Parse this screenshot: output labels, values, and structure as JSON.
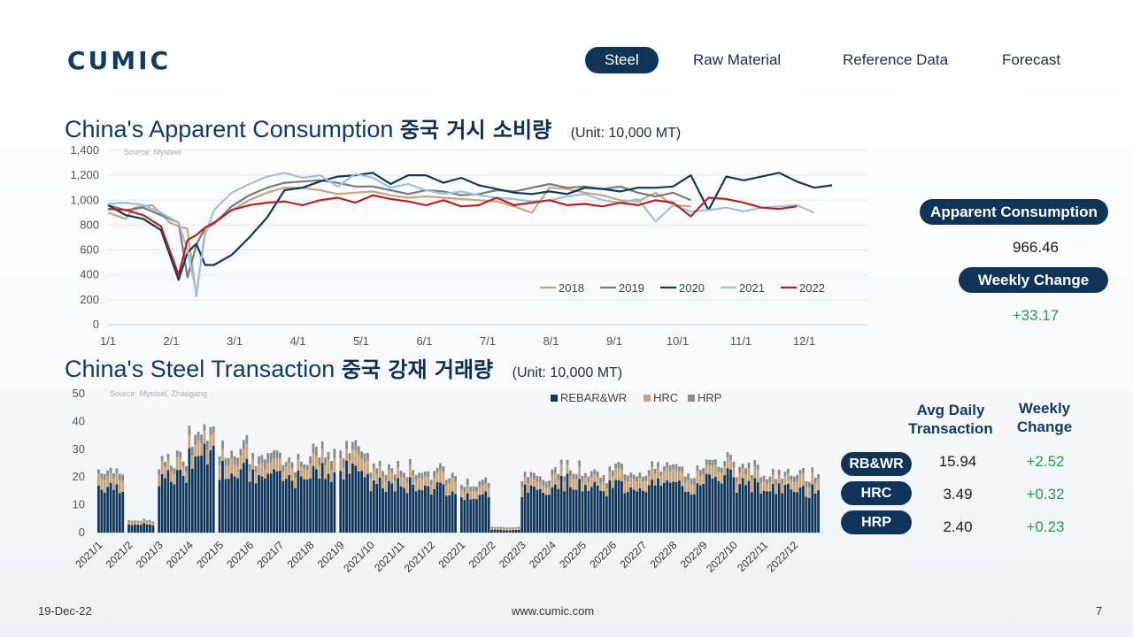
{
  "logo": {
    "text": "CUMIC"
  },
  "nav": {
    "items": [
      "Steel",
      "Raw Material",
      "Reference Data",
      "Forecast"
    ],
    "active": "Steel"
  },
  "consumption": {
    "title_en": "China's Apparent Consumption",
    "title_kr": "중국 거시 소비량",
    "unit": "(Unit: 10,000 MT)",
    "source": "Source: Mysteel",
    "summary_label": "Apparent Consumption",
    "summary_value": "966.46",
    "change_label": "Weekly Change",
    "change_value": "+33.17"
  },
  "transaction": {
    "title_en": "China's Steel Transaction",
    "title_kr": "중국 강재 거래량",
    "unit": "(Unit: 10,000 MT)",
    "source": "Source: Mysteel, Zhaogang",
    "col_avg": "Avg Daily Transaction",
    "col_change": "Weekly Change",
    "rows": [
      {
        "label": "RB&WR",
        "avg": "15.94",
        "change": "+2.52"
      },
      {
        "label": "HRC",
        "avg": "3.49",
        "change": "+0.32"
      },
      {
        "label": "HRP",
        "avg": "2.40",
        "change": "+0.23"
      }
    ]
  },
  "footer": {
    "date": "19-Dec-22",
    "website": "www.cumic.com",
    "page": "7"
  },
  "chart_data": [
    {
      "type": "line",
      "title": "",
      "ylim": [
        0,
        1400
      ],
      "y_ticks": [
        "0",
        "200",
        "400",
        "600",
        "800",
        "1,000",
        "1,200",
        "1,400"
      ],
      "x_ticks": [
        "1/1",
        "2/1",
        "3/1",
        "4/1",
        "5/1",
        "6/1",
        "7/1",
        "8/1",
        "9/1",
        "10/1",
        "11/1",
        "12/1"
      ],
      "grid": true,
      "legend": "bottom-right",
      "x_unit": "week of year (0-51)",
      "series": [
        {
          "name": "2018",
          "color": "#c9a47a",
          "points": [
            [
              0,
              900
            ],
            [
              2,
              850
            ],
            [
              3,
              940
            ],
            [
              5,
              960
            ],
            [
              7,
              820
            ],
            [
              8,
              790
            ],
            [
              9,
              770
            ],
            [
              10,
              230
            ],
            [
              11,
              760
            ],
            [
              12,
              810
            ],
            [
              14,
              920
            ],
            [
              16,
              1000
            ],
            [
              18,
              1060
            ],
            [
              20,
              1100
            ],
            [
              22,
              1100
            ],
            [
              24,
              1080
            ],
            [
              26,
              1050
            ],
            [
              28,
              1060
            ],
            [
              30,
              1070
            ],
            [
              32,
              1040
            ],
            [
              34,
              1020
            ],
            [
              36,
              1030
            ],
            [
              38,
              1020
            ],
            [
              40,
              1010
            ],
            [
              42,
              1000
            ],
            [
              44,
              990
            ],
            [
              46,
              950
            ],
            [
              48,
              900
            ],
            [
              50,
              1100
            ],
            [
              52,
              1090
            ],
            [
              54,
              1060
            ],
            [
              56,
              1040
            ],
            [
              58,
              1000
            ],
            [
              60,
              990
            ],
            [
              62,
              1060
            ],
            [
              64,
              960
            ],
            [
              66,
              950
            ]
          ]
        },
        {
          "name": "2019",
          "color": "#7a7a7a",
          "points": [
            [
              0,
              960
            ],
            [
              2,
              920
            ],
            [
              4,
              940
            ],
            [
              6,
              880
            ],
            [
              8,
              820
            ],
            [
              9,
              380
            ],
            [
              10,
              640
            ],
            [
              11,
              780
            ],
            [
              12,
              810
            ],
            [
              14,
              950
            ],
            [
              16,
              1040
            ],
            [
              18,
              1100
            ],
            [
              20,
              1140
            ],
            [
              22,
              1150
            ],
            [
              24,
              1160
            ],
            [
              26,
              1140
            ],
            [
              28,
              1110
            ],
            [
              30,
              1110
            ],
            [
              32,
              1080
            ],
            [
              34,
              1050
            ],
            [
              36,
              1080
            ],
            [
              38,
              1070
            ],
            [
              40,
              1040
            ],
            [
              42,
              1050
            ],
            [
              44,
              1080
            ],
            [
              46,
              1070
            ],
            [
              48,
              1100
            ],
            [
              50,
              1130
            ],
            [
              52,
              1100
            ],
            [
              54,
              1110
            ],
            [
              56,
              1090
            ],
            [
              58,
              1110
            ],
            [
              60,
              1060
            ],
            [
              62,
              1030
            ],
            [
              64,
              1060
            ],
            [
              66,
              1000
            ]
          ]
        },
        {
          "name": "2020",
          "color": "#12375d",
          "points": [
            [
              0,
              960
            ],
            [
              2,
              880
            ],
            [
              4,
              850
            ],
            [
              6,
              760
            ],
            [
              8,
              360
            ],
            [
              9,
              580
            ],
            [
              10,
              650
            ],
            [
              11,
              480
            ],
            [
              12,
              480
            ],
            [
              14,
              560
            ],
            [
              16,
              700
            ],
            [
              18,
              860
            ],
            [
              20,
              1080
            ],
            [
              22,
              1100
            ],
            [
              24,
              1150
            ],
            [
              26,
              1190
            ],
            [
              28,
              1200
            ],
            [
              30,
              1220
            ],
            [
              32,
              1130
            ],
            [
              34,
              1200
            ],
            [
              36,
              1200
            ],
            [
              38,
              1140
            ],
            [
              40,
              1180
            ],
            [
              42,
              1120
            ],
            [
              44,
              1090
            ],
            [
              46,
              1060
            ],
            [
              48,
              1050
            ],
            [
              50,
              1070
            ],
            [
              52,
              1050
            ],
            [
              54,
              1100
            ],
            [
              56,
              1090
            ],
            [
              58,
              1070
            ],
            [
              60,
              1100
            ],
            [
              62,
              1100
            ],
            [
              64,
              1110
            ],
            [
              66,
              1200
            ],
            [
              68,
              920
            ],
            [
              70,
              1190
            ],
            [
              72,
              1160
            ],
            [
              74,
              1190
            ],
            [
              76,
              1220
            ],
            [
              78,
              1150
            ],
            [
              80,
              1100
            ],
            [
              82,
              1120
            ]
          ]
        },
        {
          "name": "2021",
          "color": "#9fc1df",
          "points": [
            [
              0,
              970
            ],
            [
              2,
              980
            ],
            [
              4,
              960
            ],
            [
              6,
              900
            ],
            [
              8,
              820
            ],
            [
              9,
              600
            ],
            [
              10,
              250
            ],
            [
              11,
              720
            ],
            [
              12,
              920
            ],
            [
              14,
              1060
            ],
            [
              16,
              1130
            ],
            [
              18,
              1190
            ],
            [
              20,
              1220
            ],
            [
              22,
              1180
            ],
            [
              24,
              1200
            ],
            [
              26,
              1110
            ],
            [
              28,
              1210
            ],
            [
              30,
              1180
            ],
            [
              32,
              1100
            ],
            [
              34,
              1130
            ],
            [
              36,
              1080
            ],
            [
              38,
              1050
            ],
            [
              40,
              1070
            ],
            [
              42,
              1040
            ],
            [
              44,
              1020
            ],
            [
              46,
              1010
            ],
            [
              48,
              990
            ],
            [
              50,
              1000
            ],
            [
              52,
              1030
            ],
            [
              54,
              1050
            ],
            [
              56,
              1000
            ],
            [
              58,
              980
            ],
            [
              60,
              1010
            ],
            [
              62,
              830
            ],
            [
              64,
              960
            ],
            [
              66,
              910
            ],
            [
              68,
              920
            ],
            [
              70,
              940
            ],
            [
              72,
              910
            ],
            [
              74,
              940
            ],
            [
              76,
              950
            ],
            [
              78,
              960
            ],
            [
              80,
              900
            ]
          ]
        },
        {
          "name": "2022",
          "color": "#b52424",
          "points": [
            [
              0,
              930
            ],
            [
              2,
              920
            ],
            [
              4,
              880
            ],
            [
              6,
              790
            ],
            [
              8,
              400
            ],
            [
              9,
              680
            ],
            [
              10,
              720
            ],
            [
              11,
              780
            ],
            [
              12,
              820
            ],
            [
              14,
              920
            ],
            [
              16,
              960
            ],
            [
              18,
              980
            ],
            [
              20,
              990
            ],
            [
              22,
              960
            ],
            [
              24,
              1000
            ],
            [
              26,
              1020
            ],
            [
              28,
              980
            ],
            [
              30,
              1040
            ],
            [
              32,
              1010
            ],
            [
              34,
              990
            ],
            [
              36,
              960
            ],
            [
              38,
              1000
            ],
            [
              40,
              950
            ],
            [
              42,
              960
            ],
            [
              44,
              1020
            ],
            [
              46,
              960
            ],
            [
              48,
              980
            ],
            [
              50,
              1000
            ],
            [
              52,
              960
            ],
            [
              54,
              970
            ],
            [
              56,
              950
            ],
            [
              58,
              980
            ],
            [
              60,
              960
            ],
            [
              62,
              1000
            ],
            [
              64,
              980
            ],
            [
              66,
              870
            ],
            [
              68,
              1020
            ],
            [
              70,
              1010
            ],
            [
              72,
              980
            ],
            [
              74,
              940
            ],
            [
              76,
              930
            ],
            [
              78,
              950
            ]
          ]
        }
      ]
    },
    {
      "type": "bar",
      "stacked": true,
      "title": "",
      "ylim": [
        0,
        50
      ],
      "y_ticks": [
        "0",
        "10",
        "20",
        "30",
        "40",
        "50"
      ],
      "x_ticks": [
        "2021/1",
        "2021/2",
        "2021/3",
        "2021/4",
        "2021/5",
        "2021/6",
        "2021/7",
        "2021/8",
        "2021/9",
        "2021/10",
        "2021/11",
        "2021/12",
        "2022/1",
        "2022/2",
        "2022/3",
        "2022/4",
        "2022/5",
        "2022/6",
        "2022/7",
        "2022/8",
        "2022/9",
        "2022/10",
        "2022/11",
        "2022/12"
      ],
      "legend": "top",
      "monthly_avg": {
        "REBAR&WR": [
          17,
          3,
          20,
          28,
          23,
          20,
          19,
          22,
          23,
          17,
          17,
          16,
          14,
          1,
          15,
          18,
          16,
          17,
          17,
          16,
          20,
          17,
          16,
          15
        ],
        "HRC": [
          4,
          1,
          4,
          5,
          5,
          4,
          4,
          5,
          5,
          4,
          4,
          4,
          3,
          0.5,
          3,
          4,
          3,
          4,
          4,
          4,
          4,
          4,
          3,
          4
        ],
        "HRP": [
          2,
          0.5,
          2,
          3,
          3,
          3,
          2,
          3,
          3,
          2,
          2,
          2,
          2,
          0.5,
          2,
          2,
          2,
          2,
          2,
          2,
          2,
          2,
          2,
          2
        ]
      },
      "series": [
        {
          "name": "REBAR&WR",
          "color": "#12375d"
        },
        {
          "name": "HRC",
          "color": "#c9a47a"
        },
        {
          "name": "HRP",
          "color": "#8a8a8a"
        }
      ]
    }
  ]
}
